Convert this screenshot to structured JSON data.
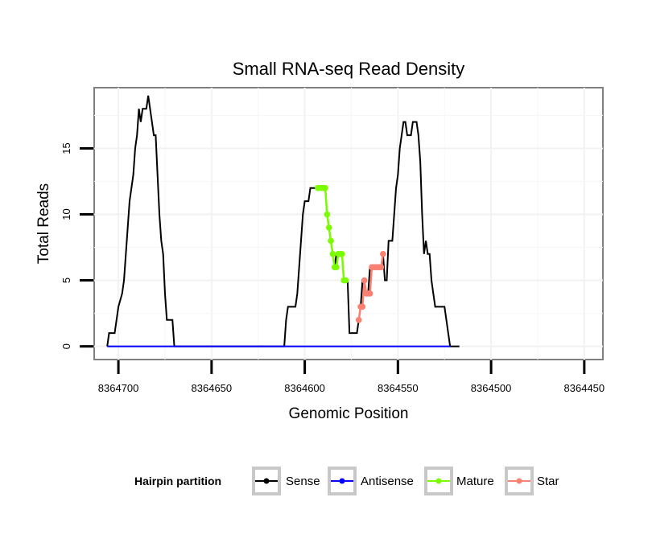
{
  "chart_data": {
    "type": "line",
    "title": "Small RNA-seq Read Density",
    "xlabel": "Genomic Position",
    "ylabel": "Total Reads",
    "x_reversed": true,
    "xlim": [
      8364713,
      8364440
    ],
    "ylim": [
      -1,
      19.6
    ],
    "x_ticks": [
      8364700,
      8364650,
      8364600,
      8364550,
      8364500,
      8364450
    ],
    "x_tick_labels": [
      "8364700",
      "8364650",
      "8364600",
      "8364550",
      "8364500",
      "8364450"
    ],
    "y_ticks": [
      0,
      5,
      10,
      15
    ],
    "y_tick_labels": [
      "0",
      "5",
      "10",
      "15"
    ],
    "grid": true,
    "legend": {
      "title": "Hairpin partition",
      "position": "bottom",
      "entries": [
        {
          "label": "Sense",
          "color": "#000000"
        },
        {
          "label": "Antisense",
          "color": "#0000ff"
        },
        {
          "label": "Mature",
          "color": "#7cfc00"
        },
        {
          "label": "Star",
          "color": "#fa8072"
        }
      ]
    },
    "series": [
      {
        "name": "Sense",
        "color": "#000000",
        "markers": false,
        "points": [
          [
            8364706,
            0
          ],
          [
            8364705,
            1
          ],
          [
            8364702,
            1
          ],
          [
            8364701,
            2
          ],
          [
            8364700,
            3
          ],
          [
            8364698,
            4
          ],
          [
            8364697,
            5
          ],
          [
            8364696,
            7
          ],
          [
            8364695,
            9
          ],
          [
            8364694,
            11
          ],
          [
            8364693,
            12
          ],
          [
            8364692,
            13
          ],
          [
            8364691,
            15
          ],
          [
            8364690,
            16
          ],
          [
            8364689,
            18
          ],
          [
            8364688,
            17
          ],
          [
            8364687,
            18
          ],
          [
            8364685,
            18
          ],
          [
            8364684,
            19
          ],
          [
            8364683,
            18
          ],
          [
            8364682,
            17
          ],
          [
            8364681,
            16
          ],
          [
            8364680,
            16
          ],
          [
            8364679,
            13
          ],
          [
            8364678,
            10
          ],
          [
            8364677,
            8
          ],
          [
            8364676,
            7
          ],
          [
            8364675,
            4
          ],
          [
            8364674,
            2
          ],
          [
            8364671,
            2
          ],
          [
            8364670,
            0
          ],
          [
            8364611,
            0
          ],
          [
            8364610,
            2
          ],
          [
            8364609,
            3
          ],
          [
            8364605,
            3
          ],
          [
            8364604,
            4
          ],
          [
            8364603,
            6
          ],
          [
            8364602,
            8
          ],
          [
            8364601,
            10
          ],
          [
            8364600,
            11
          ],
          [
            8364598,
            11
          ],
          [
            8364597,
            12
          ],
          [
            8364589,
            12
          ],
          [
            8364588,
            10
          ],
          [
            8364587,
            9
          ],
          [
            8364586,
            8
          ],
          [
            8364585,
            7
          ],
          [
            8364584,
            6
          ],
          [
            8364583,
            7
          ],
          [
            8364580,
            7
          ],
          [
            8364579,
            5
          ],
          [
            8364577,
            5
          ],
          [
            8364576,
            1
          ],
          [
            8364572,
            1
          ],
          [
            8364571,
            2
          ],
          [
            8364570,
            3
          ],
          [
            8364569,
            5
          ],
          [
            8364568,
            4
          ],
          [
            8364566,
            4
          ],
          [
            8364565,
            6
          ],
          [
            8364559,
            6
          ],
          [
            8364558,
            7
          ],
          [
            8364557,
            5
          ],
          [
            8364556,
            5
          ],
          [
            8364555,
            8
          ],
          [
            8364553,
            8
          ],
          [
            8364552,
            10
          ],
          [
            8364551,
            12
          ],
          [
            8364550,
            13
          ],
          [
            8364549,
            15
          ],
          [
            8364548,
            16
          ],
          [
            8364547,
            17
          ],
          [
            8364546,
            17
          ],
          [
            8364545,
            16
          ],
          [
            8364543,
            16
          ],
          [
            8364542,
            17
          ],
          [
            8364540,
            17
          ],
          [
            8364539,
            16
          ],
          [
            8364538,
            14
          ],
          [
            8364537,
            10
          ],
          [
            8364536,
            7
          ],
          [
            8364535,
            8
          ],
          [
            8364534,
            7
          ],
          [
            8364533,
            7
          ],
          [
            8364532,
            5
          ],
          [
            8364531,
            4
          ],
          [
            8364530,
            3
          ],
          [
            8364525,
            3
          ],
          [
            8364524,
            2
          ],
          [
            8364523,
            1
          ],
          [
            8364522,
            0
          ],
          [
            8364517,
            0
          ]
        ]
      },
      {
        "name": "Antisense",
        "color": "#0000ff",
        "markers": false,
        "points": [
          [
            8364706,
            0
          ],
          [
            8364522,
            0
          ]
        ]
      },
      {
        "name": "Mature",
        "color": "#7cfc00",
        "markers": true,
        "points": [
          [
            8364593,
            12
          ],
          [
            8364592,
            12
          ],
          [
            8364591,
            12
          ],
          [
            8364590,
            12
          ],
          [
            8364589,
            12
          ],
          [
            8364588,
            10
          ],
          [
            8364587,
            9
          ],
          [
            8364586,
            8
          ],
          [
            8364585,
            7
          ],
          [
            8364584,
            6
          ],
          [
            8364583,
            6
          ],
          [
            8364582,
            7
          ],
          [
            8364581,
            7
          ],
          [
            8364580,
            7
          ],
          [
            8364579,
            5
          ],
          [
            8364578,
            5
          ]
        ]
      },
      {
        "name": "Star",
        "color": "#fa8072",
        "markers": true,
        "points": [
          [
            8364571,
            2
          ],
          [
            8364570,
            3
          ],
          [
            8364569,
            3
          ],
          [
            8364568,
            5
          ],
          [
            8364567,
            4
          ],
          [
            8364566,
            4
          ],
          [
            8364565,
            4
          ],
          [
            8364564,
            6
          ],
          [
            8364563,
            6
          ],
          [
            8364562,
            6
          ],
          [
            8364561,
            6
          ],
          [
            8364560,
            6
          ],
          [
            8364559,
            6
          ],
          [
            8364558,
            7
          ]
        ]
      }
    ]
  }
}
